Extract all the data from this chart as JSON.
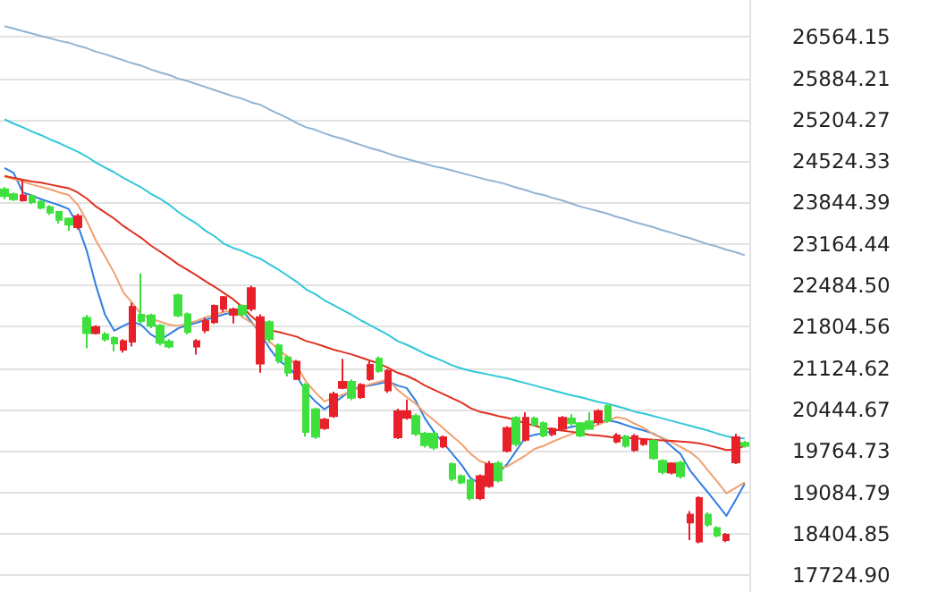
{
  "chart_data": {
    "type": "candlestick",
    "categories": [
      null,
      null,
      null,
      null,
      null,
      null,
      null,
      null,
      null,
      null,
      null,
      null,
      null,
      null,
      null,
      null,
      null,
      null,
      null,
      null,
      null,
      null,
      null,
      null,
      null,
      null,
      null,
      null,
      null,
      null,
      null,
      null,
      null,
      null,
      null,
      null,
      null,
      null,
      null,
      null,
      null,
      null,
      null,
      null,
      null,
      null,
      null,
      null,
      null,
      null,
      null,
      null,
      null,
      null,
      null,
      null,
      null,
      null,
      null,
      null,
      null,
      null,
      null,
      null,
      null,
      null,
      null,
      null,
      null,
      null,
      null,
      null,
      null,
      null,
      null,
      null,
      null,
      null,
      null,
      null,
      null,
      null
    ],
    "ohlc": [
      [
        24060,
        24100,
        23900,
        23950
      ],
      [
        23980,
        24010,
        23870,
        23900
      ],
      [
        23880,
        24210,
        23860,
        23960
      ],
      [
        23950,
        23980,
        23820,
        23850
      ],
      [
        23860,
        23880,
        23730,
        23760
      ],
      [
        23770,
        23800,
        23640,
        23680
      ],
      [
        23690,
        23710,
        23500,
        23560
      ],
      [
        23580,
        23600,
        23380,
        23480
      ],
      [
        23440,
        23660,
        23400,
        23620
      ],
      [
        21950,
        22000,
        21450,
        21700
      ],
      [
        21700,
        21830,
        21680,
        21800
      ],
      [
        21680,
        21720,
        21560,
        21600
      ],
      [
        21620,
        21650,
        21400,
        21530
      ],
      [
        21430,
        21600,
        21380,
        21570
      ],
      [
        21560,
        22200,
        21480,
        22130
      ],
      [
        22000,
        22680,
        21850,
        21900
      ],
      [
        21990,
        22020,
        21780,
        21820
      ],
      [
        21820,
        21850,
        21500,
        21540
      ],
      [
        21560,
        21600,
        21450,
        21480
      ],
      [
        22320,
        22350,
        21960,
        21990
      ],
      [
        22010,
        22040,
        21680,
        21720
      ],
      [
        21480,
        21600,
        21350,
        21570
      ],
      [
        21750,
        21950,
        21700,
        21900
      ],
      [
        21880,
        22170,
        21850,
        22150
      ],
      [
        22100,
        22310,
        22050,
        22290
      ],
      [
        22000,
        22120,
        21860,
        22090
      ],
      [
        22150,
        22170,
        21980,
        22010
      ],
      [
        22100,
        22480,
        22060,
        22440
      ],
      [
        21200,
        22010,
        21050,
        21960
      ],
      [
        21880,
        21910,
        21540,
        21600
      ],
      [
        21500,
        21530,
        21200,
        21250
      ],
      [
        21300,
        21330,
        20990,
        21050
      ],
      [
        20950,
        21260,
        20930,
        21230
      ],
      [
        20850,
        20880,
        20000,
        20080
      ],
      [
        20450,
        20480,
        19960,
        20000
      ],
      [
        20140,
        20310,
        20110,
        20280
      ],
      [
        20340,
        20740,
        20310,
        20700
      ],
      [
        20800,
        21280,
        20780,
        20900
      ],
      [
        20900,
        20940,
        20600,
        20640
      ],
      [
        20650,
        20880,
        20620,
        20850
      ],
      [
        20950,
        21240,
        20920,
        21180
      ],
      [
        21280,
        21320,
        21050,
        21080
      ],
      [
        20760,
        21110,
        20720,
        21080
      ],
      [
        19990,
        20460,
        19960,
        20420
      ],
      [
        20310,
        20610,
        20280,
        20420
      ],
      [
        20340,
        20380,
        20010,
        20050
      ],
      [
        20050,
        20080,
        19820,
        19860
      ],
      [
        20050,
        20080,
        19780,
        19820
      ],
      [
        19840,
        20020,
        19810,
        19990
      ],
      [
        19550,
        19580,
        19270,
        19310
      ],
      [
        19350,
        19380,
        19220,
        19250
      ],
      [
        19280,
        19300,
        18950,
        18990
      ],
      [
        18990,
        19380,
        18960,
        19350
      ],
      [
        19190,
        19600,
        19160,
        19550
      ],
      [
        19560,
        19600,
        19250,
        19280
      ],
      [
        19770,
        20170,
        19740,
        20140
      ],
      [
        20310,
        20340,
        19840,
        19880
      ],
      [
        19950,
        20400,
        19920,
        20310
      ],
      [
        20300,
        20330,
        20170,
        20200
      ],
      [
        20220,
        20250,
        19990,
        20020
      ],
      [
        20040,
        20150,
        20010,
        20130
      ],
      [
        20130,
        20340,
        20100,
        20310
      ],
      [
        20300,
        20370,
        20170,
        20220
      ],
      [
        20220,
        20240,
        19990,
        20020
      ],
      [
        20250,
        20400,
        20110,
        20130
      ],
      [
        20240,
        20450,
        20200,
        20420
      ],
      [
        20500,
        20530,
        20230,
        20260
      ],
      [
        19920,
        20060,
        19890,
        20020
      ],
      [
        20000,
        20030,
        19820,
        19850
      ],
      [
        19780,
        20040,
        19750,
        20010
      ],
      [
        19880,
        19970,
        19850,
        19950
      ],
      [
        19930,
        19960,
        19620,
        19650
      ],
      [
        19600,
        19630,
        19380,
        19420
      ],
      [
        19410,
        19580,
        19380,
        19560
      ],
      [
        19570,
        19600,
        19310,
        19350
      ],
      [
        18590,
        18780,
        18300,
        18720
      ],
      [
        18280,
        19020,
        18250,
        18990
      ],
      [
        18720,
        18760,
        18520,
        18560
      ],
      [
        18500,
        18530,
        18350,
        18380
      ],
      [
        18300,
        18420,
        18270,
        18390
      ],
      [
        19580,
        20050,
        19550,
        19990
      ],
      [
        19900,
        19930,
        19820,
        19850
      ]
    ],
    "colors": [
      "#3ee03e",
      "#3ee03e",
      "#e8202a",
      "#3ee03e",
      "#3ee03e",
      "#3ee03e",
      "#3ee03e",
      "#3ee03e",
      "#e8202a",
      "#3ee03e",
      "#e8202a",
      "#3ee03e",
      "#3ee03e",
      "#e8202a",
      "#e8202a",
      "#3ee03e",
      "#3ee03e",
      "#3ee03e",
      "#3ee03e",
      "#3ee03e",
      "#3ee03e",
      "#e8202a",
      "#e8202a",
      "#e8202a",
      "#e8202a",
      "#e8202a",
      "#3ee03e",
      "#e8202a",
      "#e8202a",
      "#3ee03e",
      "#3ee03e",
      "#3ee03e",
      "#e8202a",
      "#3ee03e",
      "#3ee03e",
      "#e8202a",
      "#e8202a",
      "#e8202a",
      "#3ee03e",
      "#e8202a",
      "#e8202a",
      "#3ee03e",
      "#e8202a",
      "#e8202a",
      "#e8202a",
      "#3ee03e",
      "#3ee03e",
      "#3ee03e",
      "#e8202a",
      "#3ee03e",
      "#3ee03e",
      "#3ee03e",
      "#e8202a",
      "#e8202a",
      "#3ee03e",
      "#e8202a",
      "#3ee03e",
      "#e8202a",
      "#3ee03e",
      "#3ee03e",
      "#e8202a",
      "#e8202a",
      "#3ee03e",
      "#3ee03e",
      "#3ee03e",
      "#e8202a",
      "#3ee03e",
      "#e8202a",
      "#3ee03e",
      "#e8202a",
      "#e8202a",
      "#3ee03e",
      "#3ee03e",
      "#e8202a",
      "#3ee03e",
      "#e8202a",
      "#e8202a",
      "#3ee03e",
      "#3ee03e",
      "#e8202a",
      "#e8202a",
      "#3ee03e"
    ],
    "series": [
      {
        "type": "line",
        "color": "#2f7fe0",
        "values": [
          24410,
          24330,
          24010,
          23960,
          23900,
          23850,
          23800,
          23740,
          23480,
          23050,
          22480,
          22000,
          21740,
          21820,
          21890,
          21830,
          21680,
          21590,
          21680,
          21780,
          21830,
          21870,
          21920,
          21960,
          22010,
          22040,
          22080,
          21890,
          21690,
          21450,
          21250,
          21150,
          20990,
          20740,
          20580,
          20450,
          20550,
          20660,
          20770,
          20820,
          20840,
          20870,
          20910,
          20840,
          20800,
          20590,
          20300,
          20080,
          19900,
          19720,
          19540,
          19320,
          19230,
          null,
          19400,
          19550,
          19770,
          19990,
          20030,
          20060,
          20090,
          20130,
          20160,
          20190,
          20220,
          20240,
          20270,
          20240,
          20190,
          20140,
          20100,
          20050,
          19970,
          19840,
          19710,
          19450,
          19260,
          19080,
          18890,
          18700,
          18960,
          19230
        ]
      },
      {
        "type": "line",
        "color": "#f0a070",
        "values": [
          24270,
          24230,
          24190,
          24140,
          24100,
          24060,
          24010,
          23970,
          23810,
          23540,
          23220,
          22960,
          22690,
          22370,
          22190,
          22000,
          21940,
          21890,
          21840,
          21820,
          21860,
          21900,
          21960,
          22000,
          22050,
          22070,
          21970,
          21870,
          21750,
          21560,
          21430,
          21310,
          21160,
          20900,
          20730,
          20580,
          20640,
          20690,
          20750,
          20810,
          20860,
          20900,
          20940,
          20770,
          20650,
          20540,
          20390,
          20270,
          20140,
          20010,
          19880,
          19720,
          19600,
          19550,
          19490,
          19510,
          19600,
          19690,
          19800,
          19850,
          19920,
          19980,
          20040,
          20100,
          20160,
          20200,
          20260,
          20320,
          20290,
          20210,
          20140,
          20040,
          19980,
          19910,
          19830,
          19750,
          19630,
          19440,
          19260,
          19070,
          19160,
          19250
        ]
      },
      {
        "type": "line",
        "color": "#e03020",
        "values": [
          24280,
          24250,
          24220,
          24190,
          24170,
          24140,
          24110,
          24080,
          24010,
          23910,
          23780,
          23680,
          23580,
          23460,
          23360,
          23260,
          23140,
          23040,
          22940,
          22830,
          22740,
          22650,
          22550,
          22460,
          22360,
          22260,
          22130,
          21980,
          21850,
          21750,
          21720,
          21680,
          21640,
          21570,
          21530,
          21480,
          21430,
          21390,
          21350,
          21300,
          21250,
          21200,
          21130,
          21050,
          21000,
          20930,
          20840,
          20770,
          20700,
          20630,
          20560,
          20470,
          20410,
          20380,
          20340,
          20310,
          20270,
          20220,
          20180,
          20140,
          20120,
          20100,
          20080,
          20060,
          20030,
          20020,
          20000,
          19980,
          19980,
          19970,
          19960,
          19950,
          19940,
          19930,
          19920,
          19910,
          19890,
          19860,
          19820,
          19780,
          19790,
          19850
        ]
      },
      {
        "type": "line",
        "color": "#30c8d8",
        "values": [
          25210,
          25140,
          25080,
          25010,
          24950,
          24880,
          24820,
          24750,
          24680,
          24600,
          24500,
          24420,
          24340,
          24250,
          24170,
          24090,
          23990,
          23910,
          23810,
          23690,
          23590,
          23500,
          23380,
          23290,
          23170,
          23100,
          23050,
          22980,
          22920,
          22830,
          22740,
          22640,
          22540,
          22420,
          22340,
          22240,
          22160,
          22080,
          22000,
          21910,
          21830,
          21750,
          21670,
          21570,
          21510,
          21440,
          21360,
          21300,
          21240,
          21170,
          21120,
          21080,
          21050,
          21020,
          20990,
          20960,
          20920,
          20880,
          20840,
          20800,
          20760,
          20720,
          20680,
          20650,
          20610,
          20570,
          20540,
          20500,
          20460,
          20410,
          20380,
          20340,
          20300,
          20260,
          20220,
          20180,
          20140,
          20100,
          20050,
          20010,
          19980,
          19970
        ]
      },
      {
        "type": "line",
        "color": "#90b4d4",
        "values": [
          26740,
          26700,
          26660,
          26620,
          26580,
          26540,
          26500,
          26470,
          26420,
          26380,
          26320,
          26280,
          26230,
          26180,
          26130,
          26090,
          26030,
          25980,
          25940,
          25880,
          25840,
          25790,
          25740,
          25690,
          25640,
          25590,
          25550,
          25490,
          25450,
          25370,
          25300,
          25230,
          25150,
          25080,
          25040,
          24980,
          24930,
          24890,
          24840,
          24790,
          24740,
          24700,
          24650,
          24600,
          24560,
          24520,
          24480,
          24440,
          24410,
          24370,
          24330,
          24290,
          24250,
          24210,
          24180,
          24140,
          24090,
          24050,
          24000,
          23970,
          23920,
          23880,
          23830,
          23780,
          23740,
          23700,
          23660,
          23610,
          23570,
          23520,
          23480,
          23440,
          23390,
          23350,
          23300,
          23260,
          23210,
          23160,
          23120,
          23070,
          23030,
          22980
        ]
      }
    ],
    "ylim": [
      17450,
      27170
    ],
    "yticks": [
      {
        "value": 17724.9,
        "label": "17724.90"
      },
      18404.85,
      19084.79,
      19764.73,
      20444.67,
      21124.62,
      21804.56,
      {
        "value": 22484.5,
        "label": "22484.50"
      },
      23164.44,
      23844.39,
      24524.33,
      25204.27,
      25884.21,
      26564.15
    ],
    "grid": "y",
    "tick_labels": "y",
    "line_style": "solid"
  }
}
